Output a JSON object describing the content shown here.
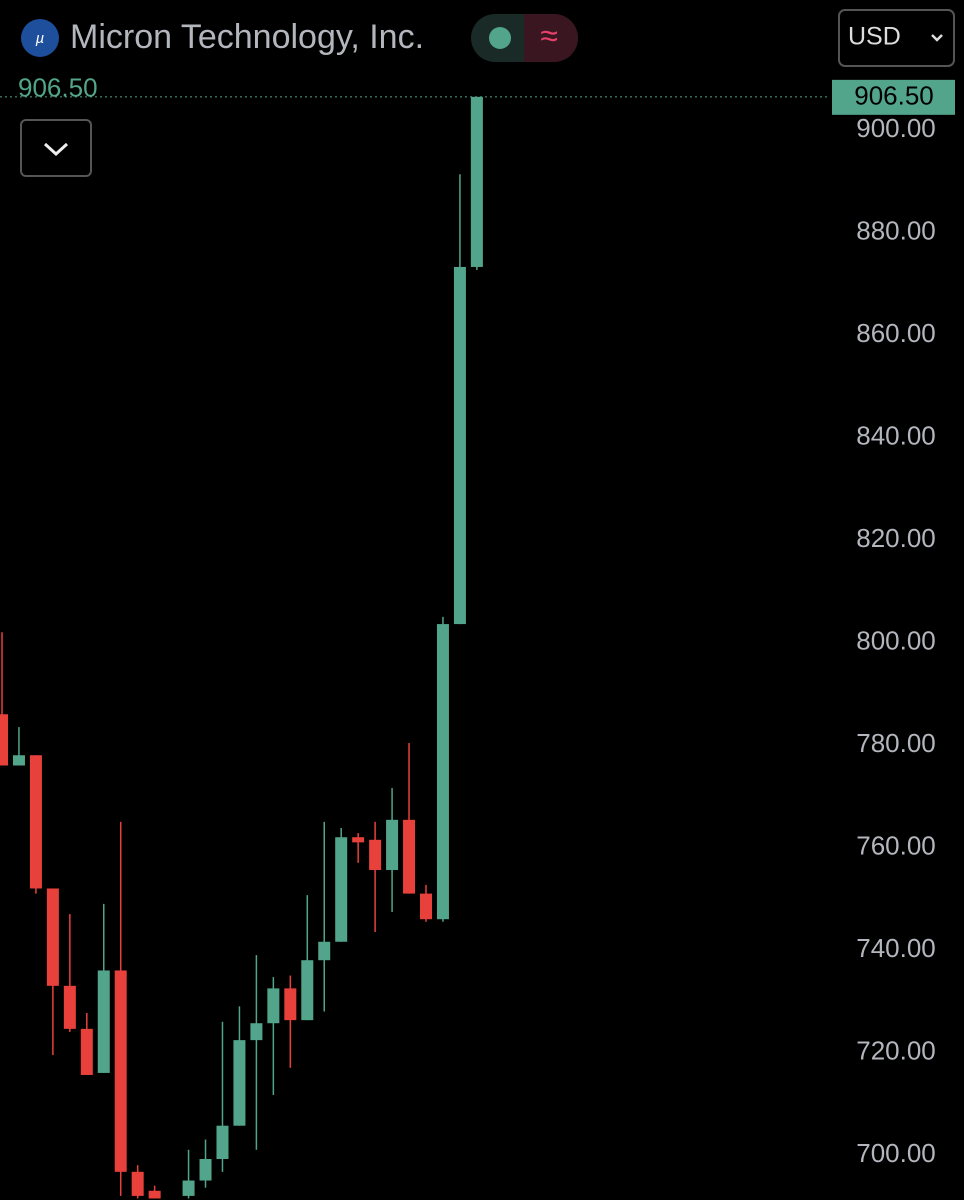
{
  "chart_data": {
    "type": "candlestick",
    "title": "Micron Technology, Inc.",
    "currency": "USD",
    "last_price": {
      "value": 906.5,
      "label": "906.50"
    },
    "up_color": "#52a58a",
    "down_color": "#e8413b",
    "ylim": [
      691.2,
      925.4
    ],
    "yticks": [
      {
        "value": 700,
        "label": "700.00"
      },
      {
        "value": 720,
        "label": "720.00"
      },
      {
        "value": 740,
        "label": "740.00"
      },
      {
        "value": 760,
        "label": "760.00"
      },
      {
        "value": 780,
        "label": "780.00"
      },
      {
        "value": 800,
        "label": "800.00"
      },
      {
        "value": 820,
        "label": "820.00"
      },
      {
        "value": 840,
        "label": "840.00"
      },
      {
        "value": 860,
        "label": "860.00"
      },
      {
        "value": 880,
        "label": "880.00"
      },
      {
        "value": 900,
        "label": "900.00"
      }
    ],
    "open": [
      786,
      776,
      778,
      752,
      733,
      724.6,
      716,
      736,
      696.7,
      693,
      null,
      692,
      695,
      699.2,
      705.7,
      722.4,
      725.7,
      732.5,
      726.3,
      738,
      741.6,
      762,
      761.5,
      755.6,
      765.4,
      751,
      746,
      803.6,
      873.3
    ],
    "high": [
      802,
      783.5,
      778,
      752,
      747,
      727.7,
      749,
      765,
      698,
      694,
      null,
      701,
      703,
      726,
      729,
      739,
      734.7,
      735,
      750.7,
      765,
      763.8,
      762.8,
      765,
      771.6,
      780.4,
      752.7,
      805,
      891.4,
      906.5
    ],
    "low": [
      776,
      776,
      751,
      719.5,
      724,
      715.6,
      716,
      692,
      691.5,
      691.5,
      null,
      691.5,
      693.6,
      696.7,
      705.7,
      701,
      711.7,
      717,
      726.3,
      728,
      741.6,
      757,
      743.5,
      747.4,
      751,
      745.5,
      745.5,
      803.6,
      872.7
    ],
    "close": [
      776,
      778,
      752,
      733,
      724.6,
      715.6,
      736,
      696.7,
      692,
      691.5,
      null,
      695,
      699.2,
      705.7,
      722.4,
      725.7,
      732.5,
      726.3,
      738,
      741.6,
      762,
      761,
      755.6,
      765.4,
      751,
      746,
      803.6,
      873.3,
      906.5
    ]
  }
}
